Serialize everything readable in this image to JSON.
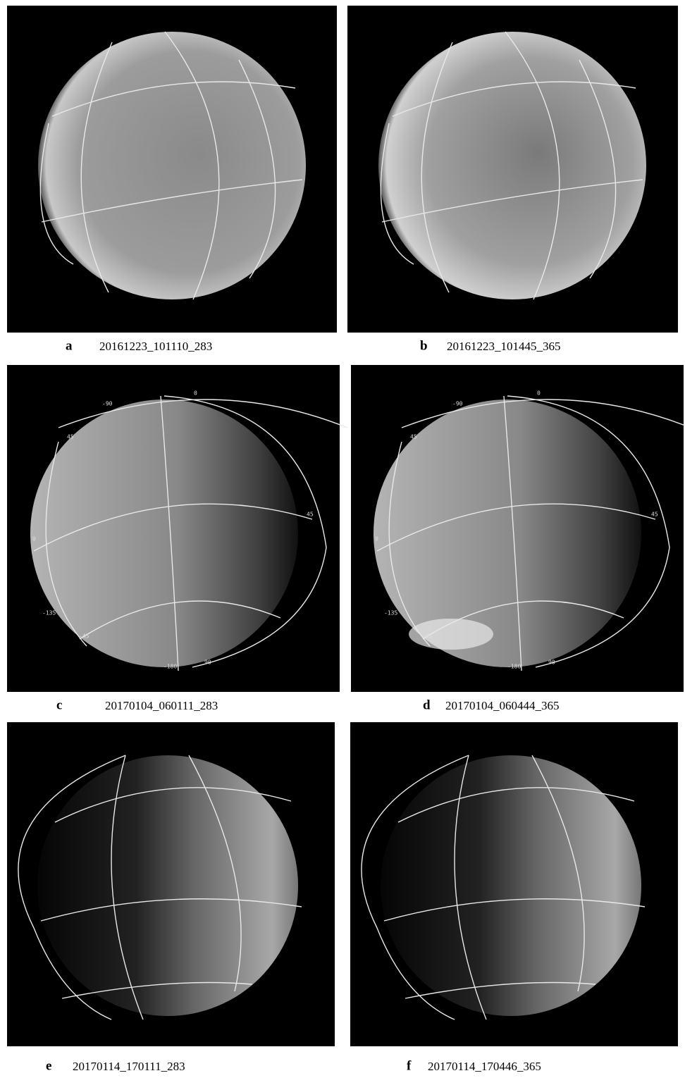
{
  "panels": [
    {
      "letter": "a",
      "label": "20161223_101110_283"
    },
    {
      "letter": "b",
      "label": "20161223_101445_365"
    },
    {
      "letter": "c",
      "label": "20170104_060111_283",
      "grid_labels": [
        "-90",
        "0",
        "45",
        "45",
        "0",
        "-135",
        "-45",
        "-180",
        "90"
      ]
    },
    {
      "letter": "d",
      "label": "20170104_060444_365",
      "grid_labels": [
        "-90",
        "0",
        "45",
        "45",
        "0",
        "-135",
        "-45",
        "-180",
        "90"
      ]
    },
    {
      "letter": "e",
      "label": "20170114_170111_283"
    },
    {
      "letter": "f",
      "label": "20170114_170446_365"
    }
  ]
}
